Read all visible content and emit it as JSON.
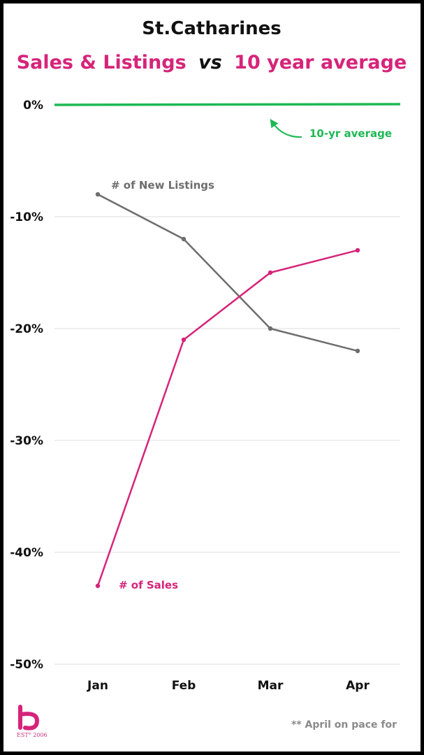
{
  "colors": {
    "sales": "#d6247a",
    "listings": "#6d6d6d",
    "average": "#1db954",
    "grid": "#dcdcdc",
    "text": "#111111",
    "footnote": "#8a8a8a"
  },
  "footnote": "** April on pace for",
  "logo": {
    "text": "EST° 2006"
  },
  "chart_data": {
    "type": "line",
    "title": "St.Catharines",
    "subtitle_parts": {
      "before": "Sales & Listings",
      "middle": "vs",
      "after": "10 year average"
    },
    "categories": [
      "Jan",
      "Feb",
      "Mar",
      "Apr"
    ],
    "ylim": [
      -50,
      0
    ],
    "yticks": [
      0,
      -10,
      -20,
      -30,
      -40,
      -50
    ],
    "ytick_labels": [
      "0%",
      "-10%",
      "-20%",
      "-30%",
      "-40%",
      "-50%"
    ],
    "grid": true,
    "series": [
      {
        "name": "# of New Listings",
        "color": "#6d6d6d",
        "values": [
          -8,
          -12,
          -20,
          -22
        ]
      },
      {
        "name": "# of Sales",
        "color": "#d6247a",
        "values": [
          -43,
          -21,
          -15,
          -13
        ]
      }
    ],
    "reference_line": {
      "name": "10-yr average",
      "value": 0,
      "color": "#1db954"
    }
  }
}
